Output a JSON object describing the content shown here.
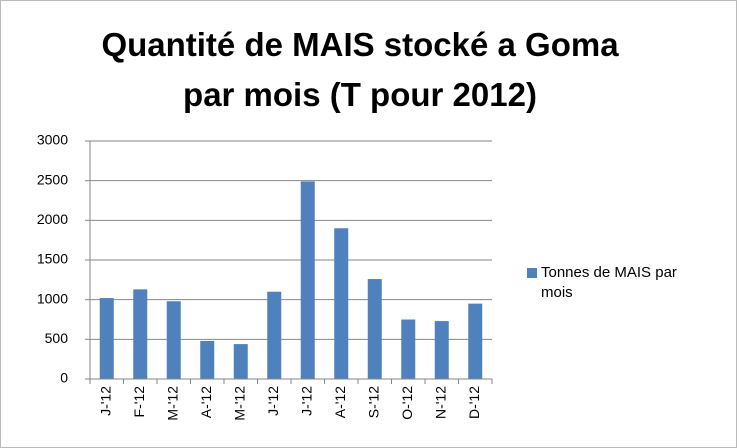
{
  "chart_data": {
    "type": "bar",
    "title": "Quantité de MAIS stocké a Goma par mois (T pour 2012)",
    "categories": [
      "J-'12",
      "F-'12",
      "M-'12",
      "A-'12",
      "M-'12",
      "J-'12",
      "J-'12",
      "A-'12",
      "S-'12",
      "O-'12",
      "N-'12",
      "D-'12"
    ],
    "series": [
      {
        "name": "Tonnes de MAIS par mois",
        "color": "#4f81bd",
        "values": [
          1020,
          1130,
          980,
          480,
          440,
          1100,
          2490,
          1900,
          1260,
          750,
          730,
          950
        ]
      }
    ],
    "ylim": [
      0,
      3000
    ],
    "yticks": [
      0,
      500,
      1000,
      1500,
      2000,
      2500,
      3000
    ],
    "grid": true,
    "legend": "right"
  }
}
